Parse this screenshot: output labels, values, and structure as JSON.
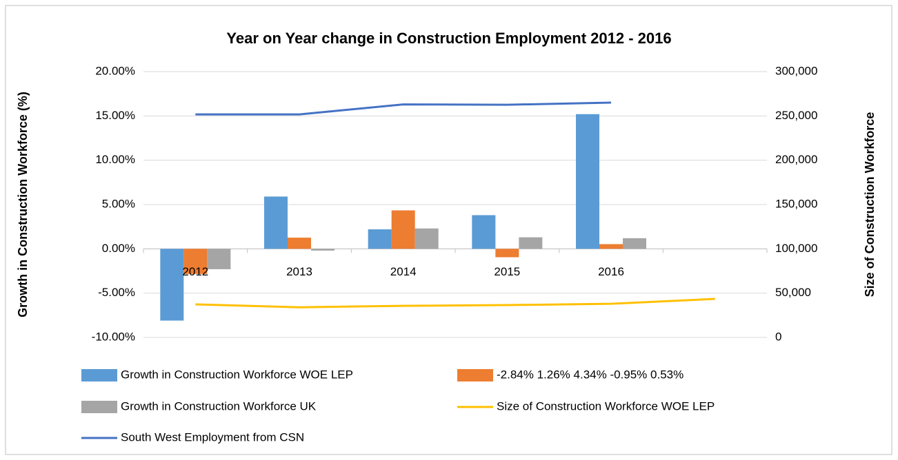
{
  "chart_data": {
    "type": "bar-line",
    "title": "Year on Year change in Construction Employment 2012 - 2016",
    "y_label": "Growth in Construction Workforce (%)",
    "y2_label": "Size of Construction Workforce",
    "categories": [
      "2012",
      "2013",
      "2014",
      "2015",
      "2016",
      null
    ],
    "series": [
      {
        "name": "Growth in Construction Workforce WOE LEP",
        "type": "bar",
        "color": "#5b9bd5",
        "values": [
          -8.1,
          5.9,
          2.2,
          3.8,
          15.2,
          null
        ]
      },
      {
        "name": "-2.84% 1.26% 4.34% -0.95% 0.53%",
        "type": "bar",
        "color": "#ed7d31",
        "values": [
          -2.84,
          1.26,
          4.34,
          -0.95,
          0.53,
          null
        ]
      },
      {
        "name": "Growth in Construction Workforce UK",
        "type": "bar",
        "color": "#a5a5a5",
        "values": [
          -2.3,
          -0.2,
          2.3,
          1.3,
          1.2,
          null
        ]
      },
      {
        "name": "Size of Construction Workforce WOE LEP",
        "type": "line",
        "axis": "y2",
        "color": "#ffc000",
        "values": [
          37300,
          34000,
          35700,
          36500,
          38000,
          43500
        ]
      },
      {
        "name": "South West Employment from CSN",
        "type": "line",
        "axis": "y2",
        "color": "#4472c4",
        "values": [
          251700,
          251700,
          263000,
          262600,
          265000,
          null
        ]
      }
    ],
    "ylim": [
      -10,
      20
    ],
    "yticks": [
      {
        "value": -10,
        "label": "-10.00%"
      },
      {
        "value": -5,
        "label": "-5.00%"
      },
      {
        "value": 0,
        "label": "0.00%"
      },
      {
        "value": 5,
        "label": "5.00%"
      },
      {
        "value": 10,
        "label": "10.00%"
      },
      {
        "value": 15,
        "label": "15.00%"
      },
      {
        "value": 20,
        "label": "20.00%"
      }
    ],
    "y2lim": [
      0,
      300000
    ],
    "y2ticks": [
      0,
      {
        "value": 50000,
        "label": "50,000"
      },
      {
        "value": 100000,
        "label": "100,000"
      },
      {
        "value": 150000,
        "label": "150,000"
      },
      {
        "value": 200000,
        "label": "200,000"
      },
      {
        "value": 250000,
        "label": "250,000"
      },
      {
        "value": 300000,
        "label": "300,000"
      }
    ],
    "grid": true
  }
}
